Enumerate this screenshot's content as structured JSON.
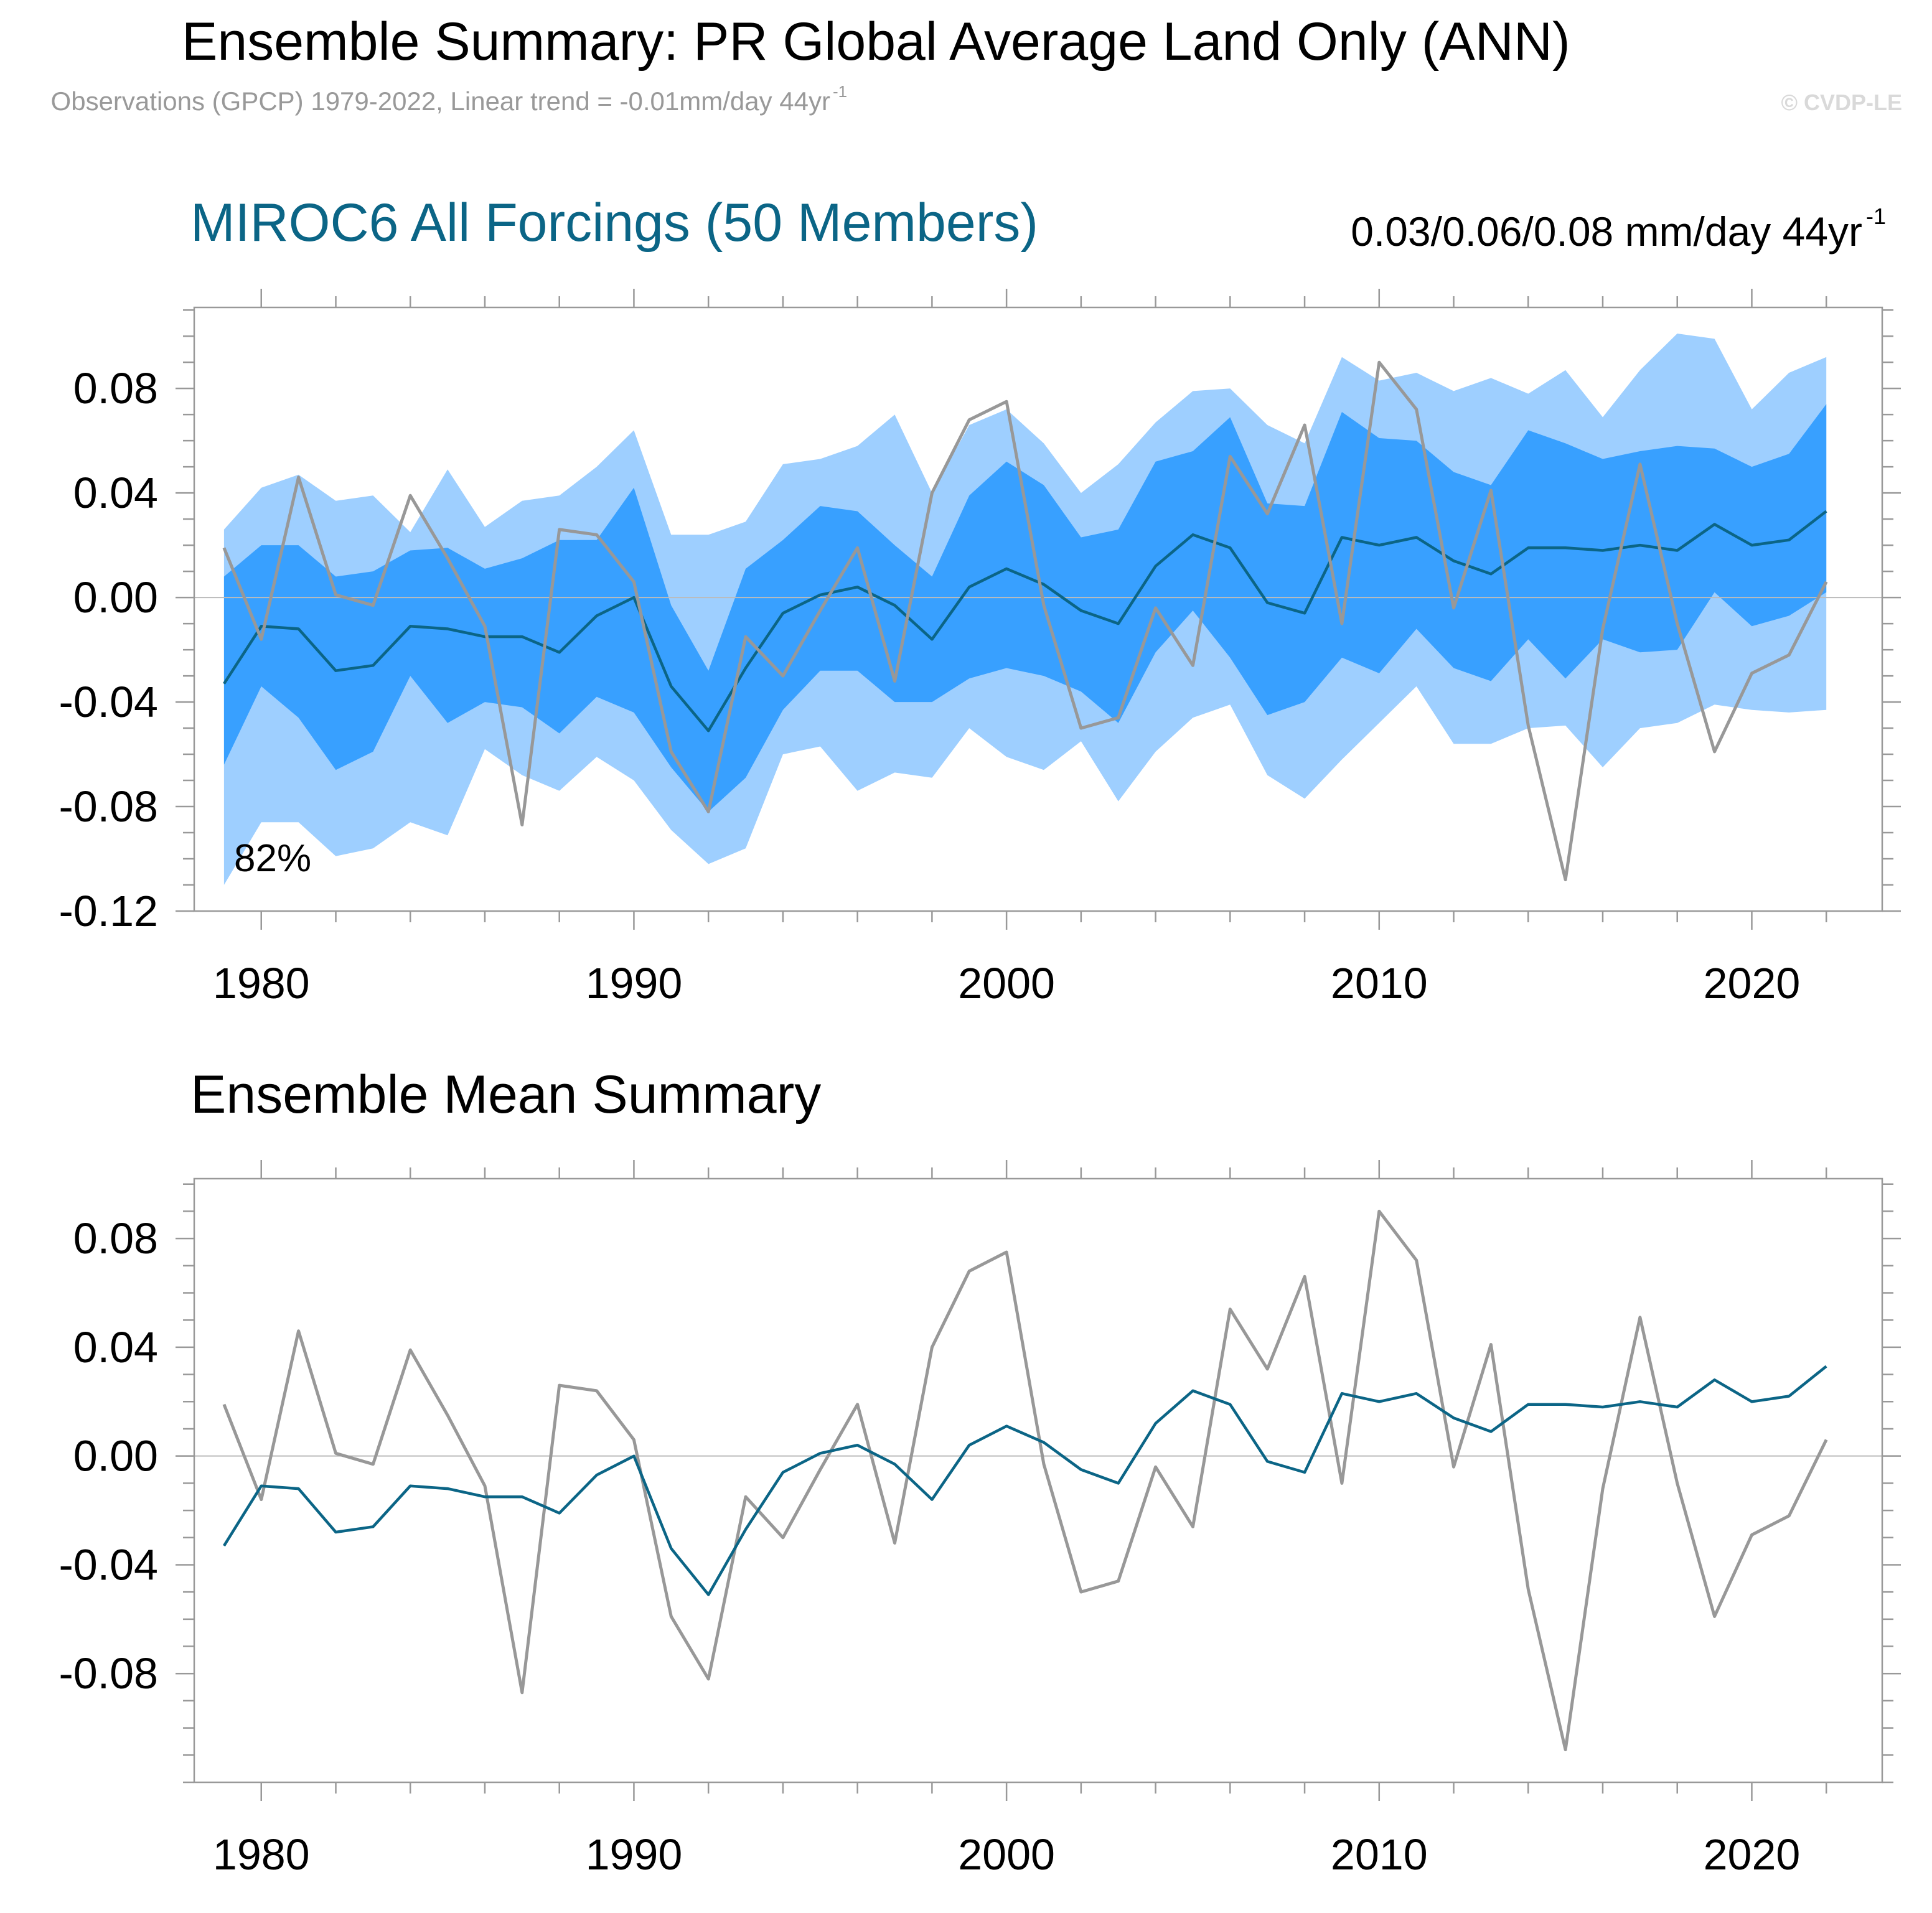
{
  "header": {
    "title": "Ensemble Summary: PR Global Average Land Only (ANN)",
    "subtitle_main": "Observations (GPCP) 1979-2022, Linear trend = -0.01mm/day 44yr",
    "subtitle_sup": "-1",
    "watermark": "© CVDP-LE"
  },
  "colors": {
    "outer_band": "#9ecfff",
    "inner_band": "#38a0ff",
    "ensemble_mean": "#0b6586",
    "observations": "#989898",
    "axis": "#999999",
    "zero_line": "#bbbbbb",
    "text": "#000000",
    "panel1_title": "#0b6586",
    "subtitle": "#999999",
    "watermark": "#d9d9d9"
  },
  "chart_data": [
    {
      "type": "area",
      "title": "MIROC6 All Forcings (50 Members)",
      "trend_label": "0.03/0.06/0.08 mm/day 44yr",
      "trend_sup": "-1",
      "annotation": "82%",
      "xlabel": "",
      "ylabel": "",
      "xlim": [
        1978.2,
        2023.5
      ],
      "ylim": [
        -0.12,
        0.111
      ],
      "x_ticks": [
        1980,
        1990,
        2000,
        2010,
        2020
      ],
      "x_tick_labels": [
        "1980",
        "1990",
        "2000",
        "2010",
        "2020"
      ],
      "y_ticks": [
        0.08,
        0.04,
        0.0,
        -0.04,
        -0.08,
        -0.12
      ],
      "y_tick_labels": [
        "0.08",
        "0.04",
        "0.00",
        "-0.04",
        "-0.08",
        "-0.12"
      ],
      "grid": false,
      "legend": "none",
      "x": [
        1979,
        1980,
        1981,
        1982,
        1983,
        1984,
        1985,
        1986,
        1987,
        1988,
        1989,
        1990,
        1991,
        1992,
        1993,
        1994,
        1995,
        1996,
        1997,
        1998,
        1999,
        2000,
        2001,
        2002,
        2003,
        2004,
        2005,
        2006,
        2007,
        2008,
        2009,
        2010,
        2011,
        2012,
        2013,
        2014,
        2015,
        2016,
        2017,
        2018,
        2019,
        2020,
        2021,
        2022
      ],
      "series": [
        {
          "name": "",
          "role": "range-upper",
          "values": [
            0.026,
            0.042,
            0.047,
            0.037,
            0.039,
            0.025,
            0.049,
            0.027,
            0.037,
            0.039,
            0.05,
            0.064,
            0.024,
            0.024,
            0.029,
            0.051,
            0.053,
            0.058,
            0.07,
            0.04,
            0.066,
            0.072,
            0.059,
            0.04,
            0.051,
            0.067,
            0.079,
            0.08,
            0.066,
            0.059,
            0.092,
            0.083,
            0.086,
            0.079,
            0.084,
            0.078,
            0.087,
            0.069,
            0.087,
            0.101,
            0.099,
            0.072,
            0.086,
            0.092
          ]
        },
        {
          "name": "",
          "role": "range-lower",
          "values": [
            -0.11,
            -0.086,
            -0.086,
            -0.099,
            -0.096,
            -0.086,
            -0.091,
            -0.058,
            -0.068,
            -0.074,
            -0.061,
            -0.07,
            -0.089,
            -0.102,
            -0.096,
            -0.06,
            -0.057,
            -0.074,
            -0.067,
            -0.069,
            -0.05,
            -0.061,
            -0.066,
            -0.055,
            -0.078,
            -0.059,
            -0.046,
            -0.041,
            -0.068,
            -0.077,
            -0.062,
            -0.048,
            -0.034,
            -0.056,
            -0.056,
            -0.05,
            -0.049,
            -0.065,
            -0.05,
            -0.048,
            -0.041,
            -0.043,
            -0.044,
            -0.043
          ]
        },
        {
          "name": "",
          "role": "interquartile-upper",
          "values": [
            0.008,
            0.02,
            0.02,
            0.008,
            0.01,
            0.018,
            0.019,
            0.011,
            0.015,
            0.022,
            0.022,
            0.042,
            -0.003,
            -0.028,
            0.011,
            0.022,
            0.035,
            0.033,
            0.02,
            0.008,
            0.039,
            0.052,
            0.043,
            0.023,
            0.026,
            0.052,
            0.056,
            0.069,
            0.036,
            0.035,
            0.071,
            0.061,
            0.06,
            0.048,
            0.043,
            0.064,
            0.059,
            0.053,
            0.056,
            0.058,
            0.057,
            0.05,
            0.055,
            0.074
          ]
        },
        {
          "name": "",
          "role": "interquartile-lower",
          "values": [
            -0.064,
            -0.034,
            -0.046,
            -0.066,
            -0.059,
            -0.03,
            -0.048,
            -0.04,
            -0.042,
            -0.052,
            -0.038,
            -0.044,
            -0.065,
            -0.082,
            -0.069,
            -0.043,
            -0.028,
            -0.028,
            -0.04,
            -0.04,
            -0.031,
            -0.027,
            -0.03,
            -0.036,
            -0.048,
            -0.021,
            -0.005,
            -0.023,
            -0.045,
            -0.04,
            -0.023,
            -0.029,
            -0.012,
            -0.027,
            -0.032,
            -0.016,
            -0.031,
            -0.016,
            -0.021,
            -0.02,
            0.002,
            -0.011,
            -0.007,
            0.002
          ]
        },
        {
          "name": "",
          "role": "ensemble-mean",
          "values": [
            -0.033,
            -0.011,
            -0.012,
            -0.028,
            -0.026,
            -0.011,
            -0.012,
            -0.015,
            -0.015,
            -0.021,
            -0.007,
            0.0,
            -0.034,
            -0.051,
            -0.027,
            -0.006,
            0.001,
            0.004,
            -0.003,
            -0.016,
            0.004,
            0.011,
            0.005,
            -0.005,
            -0.01,
            0.012,
            0.024,
            0.019,
            -0.002,
            -0.006,
            0.023,
            0.02,
            0.023,
            0.014,
            0.009,
            0.019,
            0.019,
            0.018,
            0.02,
            0.018,
            0.028,
            0.02,
            0.022,
            0.033
          ]
        },
        {
          "name": "",
          "role": "observations",
          "values": [
            0.019,
            -0.016,
            0.046,
            0.001,
            -0.003,
            0.039,
            0.015,
            -0.011,
            -0.087,
            0.026,
            0.024,
            0.006,
            -0.059,
            -0.082,
            -0.015,
            -0.03,
            -0.005,
            0.019,
            -0.032,
            0.04,
            0.068,
            0.075,
            -0.003,
            -0.05,
            -0.046,
            -0.004,
            -0.026,
            0.054,
            0.032,
            0.066,
            -0.01,
            0.09,
            0.072,
            -0.004,
            0.041,
            -0.049,
            -0.108,
            -0.012,
            0.051,
            -0.01,
            -0.059,
            -0.029,
            -0.022,
            0.006
          ]
        }
      ]
    },
    {
      "type": "line",
      "title": "Ensemble Mean Summary",
      "xlabel": "",
      "ylabel": "",
      "xlim": [
        1978.2,
        2023.5
      ],
      "ylim": [
        -0.12,
        0.102
      ],
      "x_ticks": [
        1980,
        1990,
        2000,
        2010,
        2020
      ],
      "x_tick_labels": [
        "1980",
        "1990",
        "2000",
        "2010",
        "2020"
      ],
      "y_ticks": [
        0.08,
        0.04,
        0.0,
        -0.04,
        -0.08
      ],
      "y_tick_labels": [
        "0.08",
        "0.04",
        "0.00",
        "-0.04",
        "-0.08"
      ],
      "grid": false,
      "legend": "none",
      "x": [
        1979,
        1980,
        1981,
        1982,
        1983,
        1984,
        1985,
        1986,
        1987,
        1988,
        1989,
        1990,
        1991,
        1992,
        1993,
        1994,
        1995,
        1996,
        1997,
        1998,
        1999,
        2000,
        2001,
        2002,
        2003,
        2004,
        2005,
        2006,
        2007,
        2008,
        2009,
        2010,
        2011,
        2012,
        2013,
        2014,
        2015,
        2016,
        2017,
        2018,
        2019,
        2020,
        2021,
        2022
      ],
      "series": [
        {
          "name": "",
          "role": "observations",
          "values": [
            0.019,
            -0.016,
            0.046,
            0.001,
            -0.003,
            0.039,
            0.015,
            -0.011,
            -0.087,
            0.026,
            0.024,
            0.006,
            -0.059,
            -0.082,
            -0.015,
            -0.03,
            -0.005,
            0.019,
            -0.032,
            0.04,
            0.068,
            0.075,
            -0.003,
            -0.05,
            -0.046,
            -0.004,
            -0.026,
            0.054,
            0.032,
            0.066,
            -0.01,
            0.09,
            0.072,
            -0.004,
            0.041,
            -0.049,
            -0.108,
            -0.012,
            0.051,
            -0.01,
            -0.059,
            -0.029,
            -0.022,
            0.006
          ]
        },
        {
          "name": "",
          "role": "ensemble-mean",
          "values": [
            -0.033,
            -0.011,
            -0.012,
            -0.028,
            -0.026,
            -0.011,
            -0.012,
            -0.015,
            -0.015,
            -0.021,
            -0.007,
            0.0,
            -0.034,
            -0.051,
            -0.027,
            -0.006,
            0.001,
            0.004,
            -0.003,
            -0.016,
            0.004,
            0.011,
            0.005,
            -0.005,
            -0.01,
            0.012,
            0.024,
            0.019,
            -0.002,
            -0.006,
            0.023,
            0.02,
            0.023,
            0.014,
            0.009,
            0.019,
            0.019,
            0.018,
            0.02,
            0.018,
            0.028,
            0.02,
            0.022,
            0.033
          ]
        }
      ]
    }
  ]
}
